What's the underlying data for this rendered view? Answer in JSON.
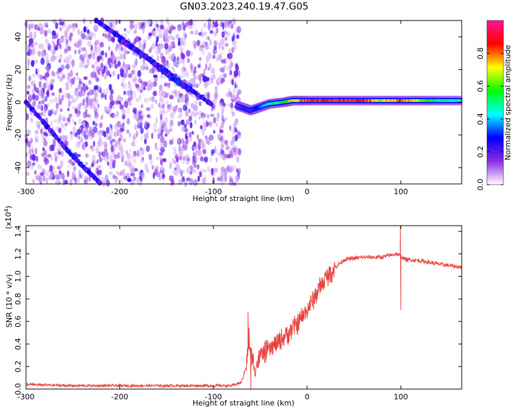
{
  "title": "GN03.2023.240.19.47.G05",
  "chart_data": [
    {
      "type": "heatmap",
      "xlabel": "Height of straight line (km)",
      "ylabel": "Frequency (Hz)",
      "xlim": [
        -300,
        165
      ],
      "ylim": [
        -50,
        50
      ],
      "xticks": [
        -300,
        -200,
        -100,
        0,
        100
      ],
      "yticks": [
        -40,
        -20,
        0,
        20,
        40
      ],
      "data_extent_x": [
        -300,
        -72
      ],
      "descending_tracks": [
        {
          "x": [
            -300,
            -277,
            -255,
            -238,
            -220
          ],
          "y": [
            0,
            -15,
            -30,
            -40,
            -50
          ]
        },
        {
          "x": [
            -225,
            -200,
            -175,
            -150,
            -125,
            -100
          ],
          "y": [
            50,
            40,
            29,
            19,
            8,
            -2
          ]
        },
        {
          "x": [
            -200,
            -175,
            -150,
            -125
          ],
          "y": [
            38,
            29,
            17,
            7
          ]
        }
      ],
      "central_line": {
        "x": [
          -75,
          -65,
          -60,
          -50,
          -40,
          -25,
          -15,
          0,
          20,
          40,
          60,
          80,
          100,
          120,
          140,
          165
        ],
        "y": [
          -2,
          -4,
          -5,
          -3,
          -1,
          0,
          1,
          1,
          1,
          1,
          1,
          1,
          1,
          1,
          1,
          1
        ],
        "amplitude": [
          0.15,
          0.25,
          0.2,
          0.35,
          0.5,
          0.6,
          0.75,
          0.9,
          0.95,
          0.9,
          0.95,
          0.7,
          0.9,
          0.7,
          0.55,
          0.5
        ]
      },
      "colorbar": {
        "label": "Normalized spectral amplitude",
        "ticks": [
          0.0,
          0.2,
          0.4,
          0.6,
          0.8
        ],
        "range": [
          0,
          1
        ],
        "colors": [
          "#ffffff",
          "#8a2be2",
          "#0000ff",
          "#00ffff",
          "#00ff00",
          "#ffff00",
          "#ff0000",
          "#ff1493"
        ]
      }
    },
    {
      "type": "line",
      "xlabel": "Height of straight line (km)",
      "ylabel": "SNR (10 * v/v)",
      "scale_label": "(x10",
      "scale_exp": "4",
      "scale_close": ")",
      "xlim": [
        -300,
        165
      ],
      "ylim": [
        0,
        1.45
      ],
      "xticks": [
        -300,
        -200,
        -100,
        0,
        100
      ],
      "yticks": [
        "0.0",
        "0.2",
        "0.4",
        "0.6",
        "0.8",
        "1.0",
        "1.2",
        "1.4"
      ],
      "color": "#e8413b",
      "x": [
        -300,
        -250,
        -200,
        -150,
        -100,
        -80,
        -70,
        -65,
        -62,
        -60,
        -55,
        -50,
        -40,
        -30,
        -20,
        -10,
        0,
        10,
        20,
        30,
        40,
        60,
        80,
        95,
        100,
        105,
        120,
        140,
        165
      ],
      "y": [
        0.04,
        0.03,
        0.03,
        0.03,
        0.03,
        0.03,
        0.06,
        0.2,
        0.45,
        0.3,
        0.18,
        0.3,
        0.35,
        0.42,
        0.5,
        0.58,
        0.7,
        0.85,
        0.98,
        1.08,
        1.15,
        1.17,
        1.17,
        1.2,
        1.18,
        1.15,
        1.14,
        1.11,
        1.08
      ],
      "spikes": [
        {
          "x": -63,
          "y": 0.68
        },
        {
          "x": -60,
          "y": 0.0
        },
        {
          "x": 99.5,
          "y": 1.45
        },
        {
          "x": 100,
          "y": 0.7
        }
      ]
    }
  ]
}
